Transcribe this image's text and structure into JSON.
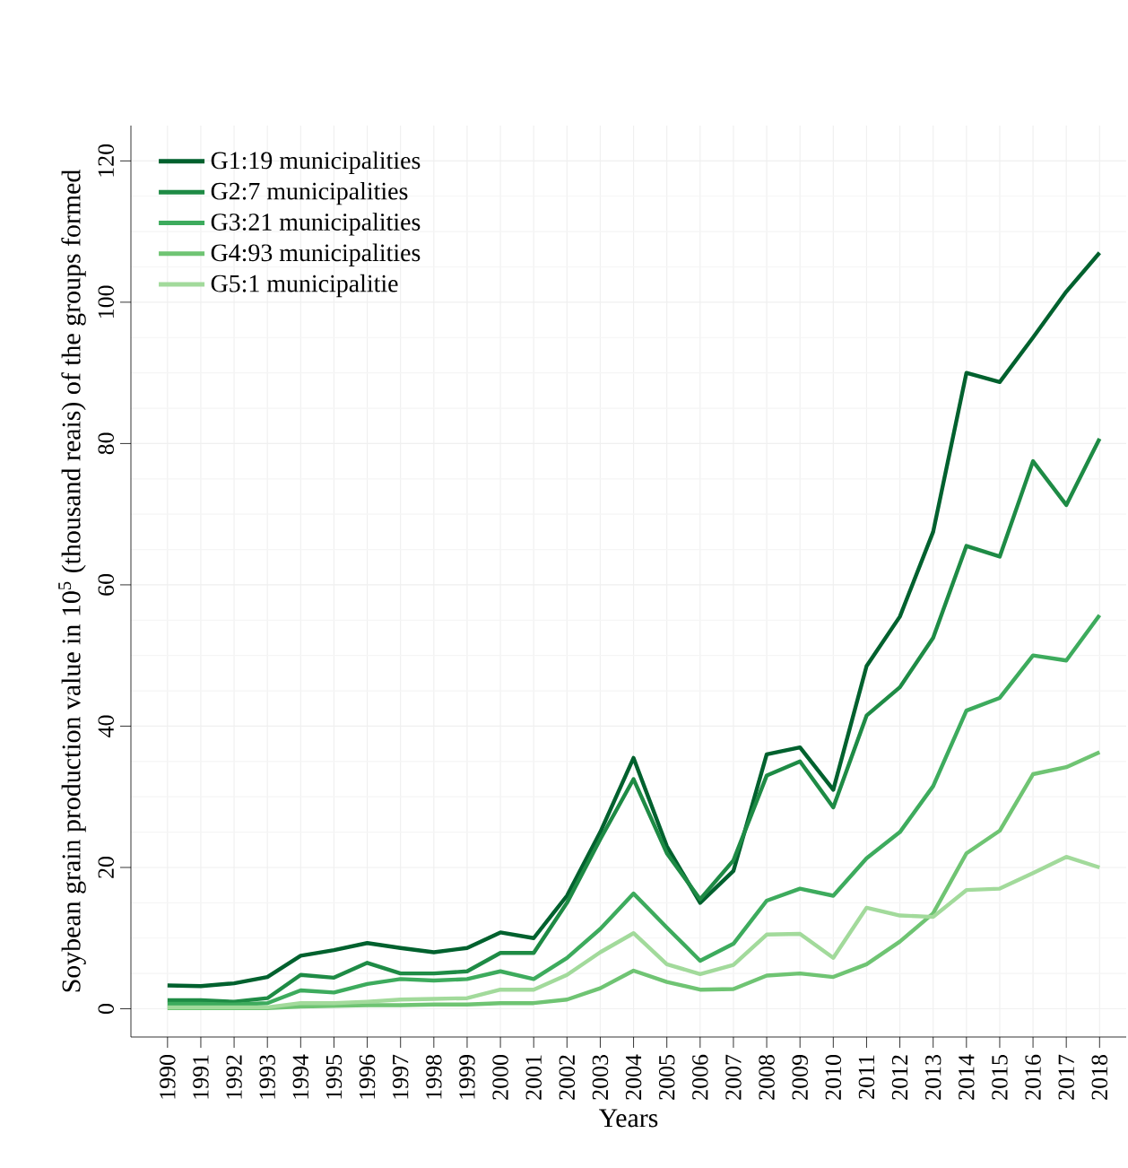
{
  "chart_data": {
    "type": "line",
    "xlabel": "Years",
    "ylabel": "Soybean grain production value in 10$^{5}$ (thousand reais) of the groups formed",
    "x": [
      1990,
      1991,
      1992,
      1993,
      1994,
      1995,
      1996,
      1997,
      1998,
      1999,
      2000,
      2001,
      2002,
      2003,
      2004,
      2005,
      2006,
      2007,
      2008,
      2009,
      2010,
      2011,
      2012,
      2013,
      2014,
      2015,
      2016,
      2017,
      2018
    ],
    "xlim": [
      1988.9,
      2018.8
    ],
    "xticks": [
      1990,
      1991,
      1992,
      1993,
      1994,
      1995,
      1996,
      1997,
      1998,
      1999,
      2000,
      2001,
      2002,
      2003,
      2004,
      2005,
      2006,
      2007,
      2008,
      2009,
      2010,
      2011,
      2012,
      2013,
      2014,
      2015,
      2016,
      2017,
      2018
    ],
    "ylim": [
      -4,
      125
    ],
    "yticks": [
      0,
      20,
      40,
      60,
      80,
      100,
      120
    ],
    "grid": true,
    "legend": "top left",
    "marker": "none",
    "line_style": "solid",
    "series": [
      {
        "name": "G1:19 municipalities",
        "color": "#00612e",
        "values": [
          3.3,
          3.2,
          3.6,
          4.5,
          7.5,
          8.3,
          9.3,
          8.6,
          8.0,
          8.6,
          10.8,
          10.0,
          16.0,
          25.0,
          35.5,
          23.0,
          15.0,
          19.5,
          36.0,
          37.0,
          31.0,
          48.5,
          55.5,
          67.5,
          90.0,
          88.7,
          95.0,
          101.5,
          107.0
        ]
      },
      {
        "name": "G2:7 municipalities",
        "color": "#1e8b45",
        "values": [
          1.2,
          1.2,
          1.0,
          1.5,
          4.8,
          4.4,
          6.5,
          5.0,
          5.0,
          5.3,
          7.9,
          7.9,
          15.0,
          24.0,
          32.5,
          22.0,
          15.5,
          21.0,
          33.0,
          35.0,
          28.5,
          41.5,
          45.5,
          52.5,
          65.5,
          64.0,
          77.5,
          71.3,
          80.7
        ]
      },
      {
        "name": "G3:21 municipalities",
        "color": "#3dab5d",
        "values": [
          0.7,
          0.7,
          0.6,
          0.8,
          2.6,
          2.3,
          3.5,
          4.2,
          4.0,
          4.2,
          5.3,
          4.2,
          7.2,
          11.3,
          16.3,
          11.5,
          6.8,
          9.2,
          15.3,
          17.0,
          16.0,
          21.3,
          25.0,
          31.5,
          42.2,
          44.0,
          50.0,
          49.3,
          55.7
        ]
      },
      {
        "name": "G4:93 municipalities",
        "color": "#6fc473",
        "values": [
          0.1,
          0.1,
          0.1,
          0.1,
          0.3,
          0.4,
          0.5,
          0.5,
          0.6,
          0.6,
          0.8,
          0.8,
          1.3,
          2.9,
          5.4,
          3.8,
          2.7,
          2.8,
          4.7,
          5.0,
          4.5,
          6.3,
          9.5,
          13.5,
          22.0,
          25.2,
          33.2,
          34.2,
          36.3
        ]
      },
      {
        "name": "G5:1 municipalitie",
        "color": "#a2da9b",
        "values": [
          0.2,
          0.2,
          0.2,
          0.2,
          0.8,
          0.8,
          1.0,
          1.3,
          1.4,
          1.5,
          2.7,
          2.7,
          4.8,
          8.0,
          10.7,
          6.3,
          4.9,
          6.2,
          10.5,
          10.6,
          7.2,
          14.3,
          13.2,
          13.0,
          16.8,
          17.0,
          19.2,
          21.5,
          20.0
        ]
      }
    ]
  }
}
